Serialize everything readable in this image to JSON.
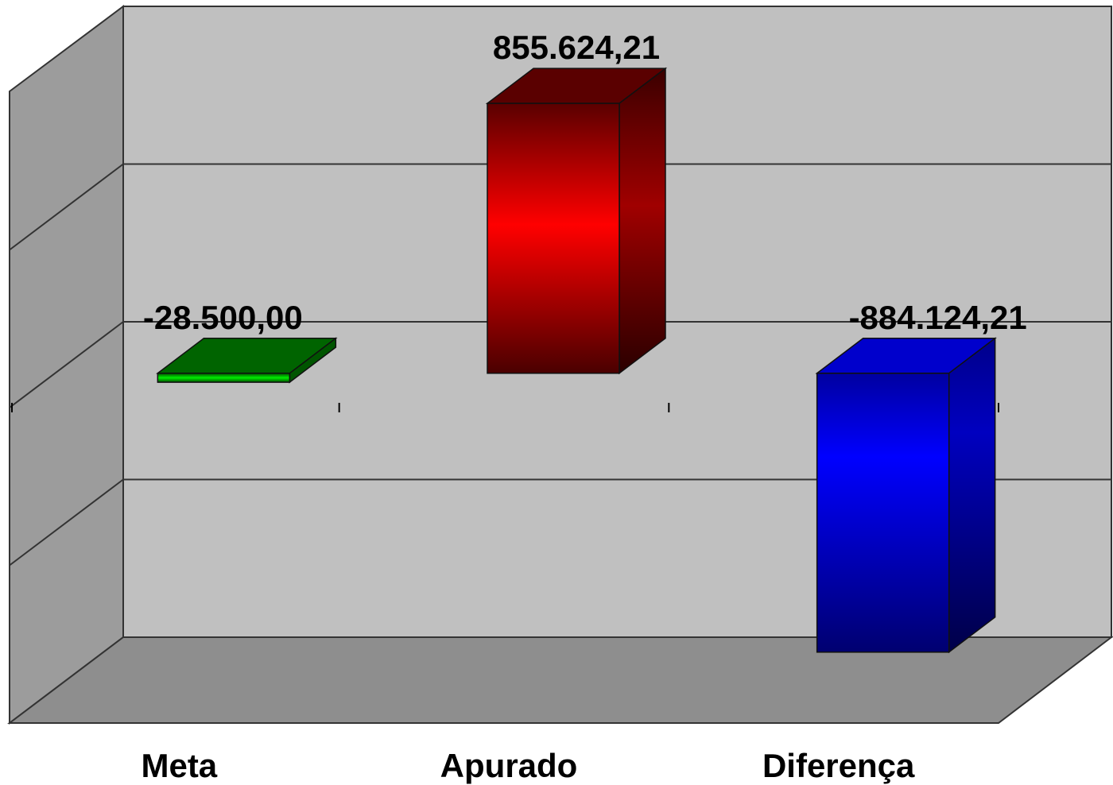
{
  "chart_data": {
    "type": "bar",
    "style": "3d-column",
    "categories": [
      "Meta",
      "Apurado",
      "Diferença"
    ],
    "values": [
      -28500.0,
      855624.21,
      -884124.21
    ],
    "data_labels": [
      "-28.500,00",
      "855.624,21",
      "-884.124,21"
    ],
    "colors": [
      "#00cc00",
      "#ff0000",
      "#0000ff"
    ],
    "ylim": [
      -1000000,
      1000000
    ],
    "gridlines": [
      -1000000,
      -500000,
      0,
      500000,
      1000000
    ],
    "grid": true,
    "legend": "none",
    "background": "#c0c0c0",
    "floor_color": "#969696",
    "side_wall_color": "#a0a0a0"
  }
}
